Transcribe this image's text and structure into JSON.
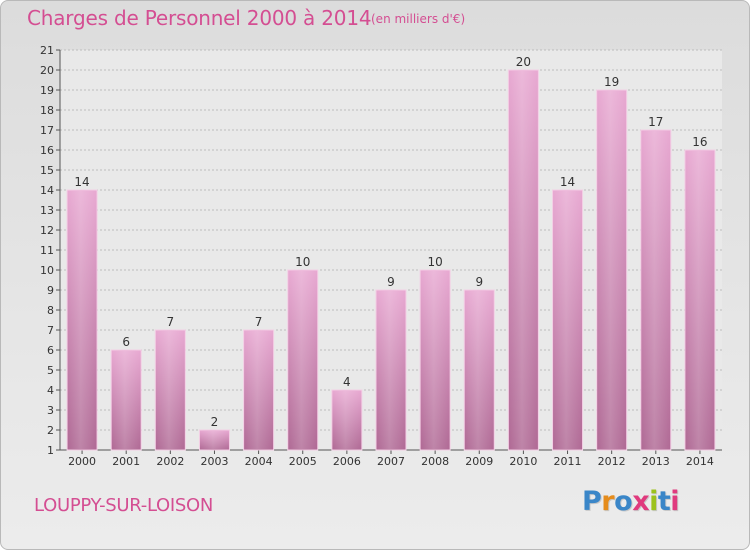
{
  "header": {
    "title": "Charges de Personnel 2000 à 2014",
    "subtitle": "(en milliers d'€)"
  },
  "footer": {
    "place": "LOUPPY-SUR-LOISON",
    "logo": "Proxiti"
  },
  "colors": {
    "accent": "#d44e92",
    "bar_top": "#e8a9d2",
    "bar_bottom": "#b06a95",
    "logo_letters": [
      "#3a86c8",
      "#e58c1c",
      "#3a86c8",
      "#e03a7e",
      "#9cc21c",
      "#3a86c8",
      "#e03a7e"
    ]
  },
  "chart_data": {
    "type": "bar",
    "title": "Charges de Personnel 2000 à 2014",
    "subtitle": "(en milliers d'€)",
    "categories": [
      "2000",
      "2001",
      "2002",
      "2003",
      "2004",
      "2005",
      "2006",
      "2007",
      "2008",
      "2009",
      "2010",
      "2011",
      "2012",
      "2013",
      "2014"
    ],
    "values": [
      14,
      6,
      7,
      2,
      7,
      10,
      4,
      9,
      10,
      9,
      20,
      14,
      19,
      17,
      16
    ],
    "ylim": [
      1,
      21
    ],
    "yticks": [
      1,
      2,
      3,
      4,
      5,
      6,
      7,
      8,
      9,
      10,
      11,
      12,
      13,
      14,
      15,
      16,
      17,
      18,
      19,
      20,
      21
    ],
    "grid": true,
    "legend": "none"
  }
}
